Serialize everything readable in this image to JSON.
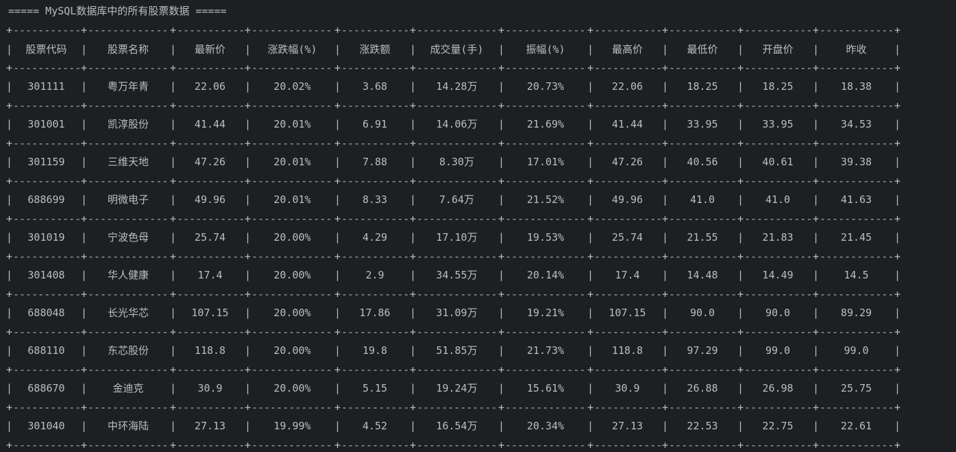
{
  "title": "===== MySQL数据库中的所有股票数据 =====",
  "colors": {
    "background": "#1e1f22",
    "text": "#bcbec4"
  },
  "table": {
    "headers": [
      "股票代码",
      "股票名称",
      "最新价",
      "涨跌幅(%)",
      "涨跌额",
      "成交量(手)",
      "振幅(%)",
      "最高价",
      "最低价",
      "开盘价",
      "昨收"
    ],
    "rows": [
      [
        "301111",
        "粤万年青",
        "22.06",
        "20.02%",
        "3.68",
        "14.28万",
        "20.73%",
        "22.06",
        "18.25",
        "18.25",
        "18.38"
      ],
      [
        "301001",
        "凯淳股份",
        "41.44",
        "20.01%",
        "6.91",
        "14.06万",
        "21.69%",
        "41.44",
        "33.95",
        "33.95",
        "34.53"
      ],
      [
        "301159",
        "三维天地",
        "47.26",
        "20.01%",
        "7.88",
        "8.30万",
        "17.01%",
        "47.26",
        "40.56",
        "40.61",
        "39.38"
      ],
      [
        "688699",
        "明微电子",
        "49.96",
        "20.01%",
        "8.33",
        "7.64万",
        "21.52%",
        "49.96",
        "41.0",
        "41.0",
        "41.63"
      ],
      [
        "301019",
        "宁波色母",
        "25.74",
        "20.00%",
        "4.29",
        "17.10万",
        "19.53%",
        "25.74",
        "21.55",
        "21.83",
        "21.45"
      ],
      [
        "301408",
        "华人健康",
        "17.4",
        "20.00%",
        "2.9",
        "34.55万",
        "20.14%",
        "17.4",
        "14.48",
        "14.49",
        "14.5"
      ],
      [
        "688048",
        "长光华芯",
        "107.15",
        "20.00%",
        "17.86",
        "31.09万",
        "19.21%",
        "107.15",
        "90.0",
        "90.0",
        "89.29"
      ],
      [
        "688110",
        "东芯股份",
        "118.8",
        "20.00%",
        "19.8",
        "51.85万",
        "21.73%",
        "118.8",
        "97.29",
        "99.0",
        "99.0"
      ],
      [
        "688670",
        "金迪克",
        "30.9",
        "20.00%",
        "5.15",
        "19.24万",
        "15.61%",
        "30.9",
        "26.88",
        "26.98",
        "25.75"
      ],
      [
        "301040",
        "中环海陆",
        "27.13",
        "19.99%",
        "4.52",
        "16.54万",
        "20.34%",
        "27.13",
        "22.53",
        "22.75",
        "22.61"
      ]
    ]
  }
}
